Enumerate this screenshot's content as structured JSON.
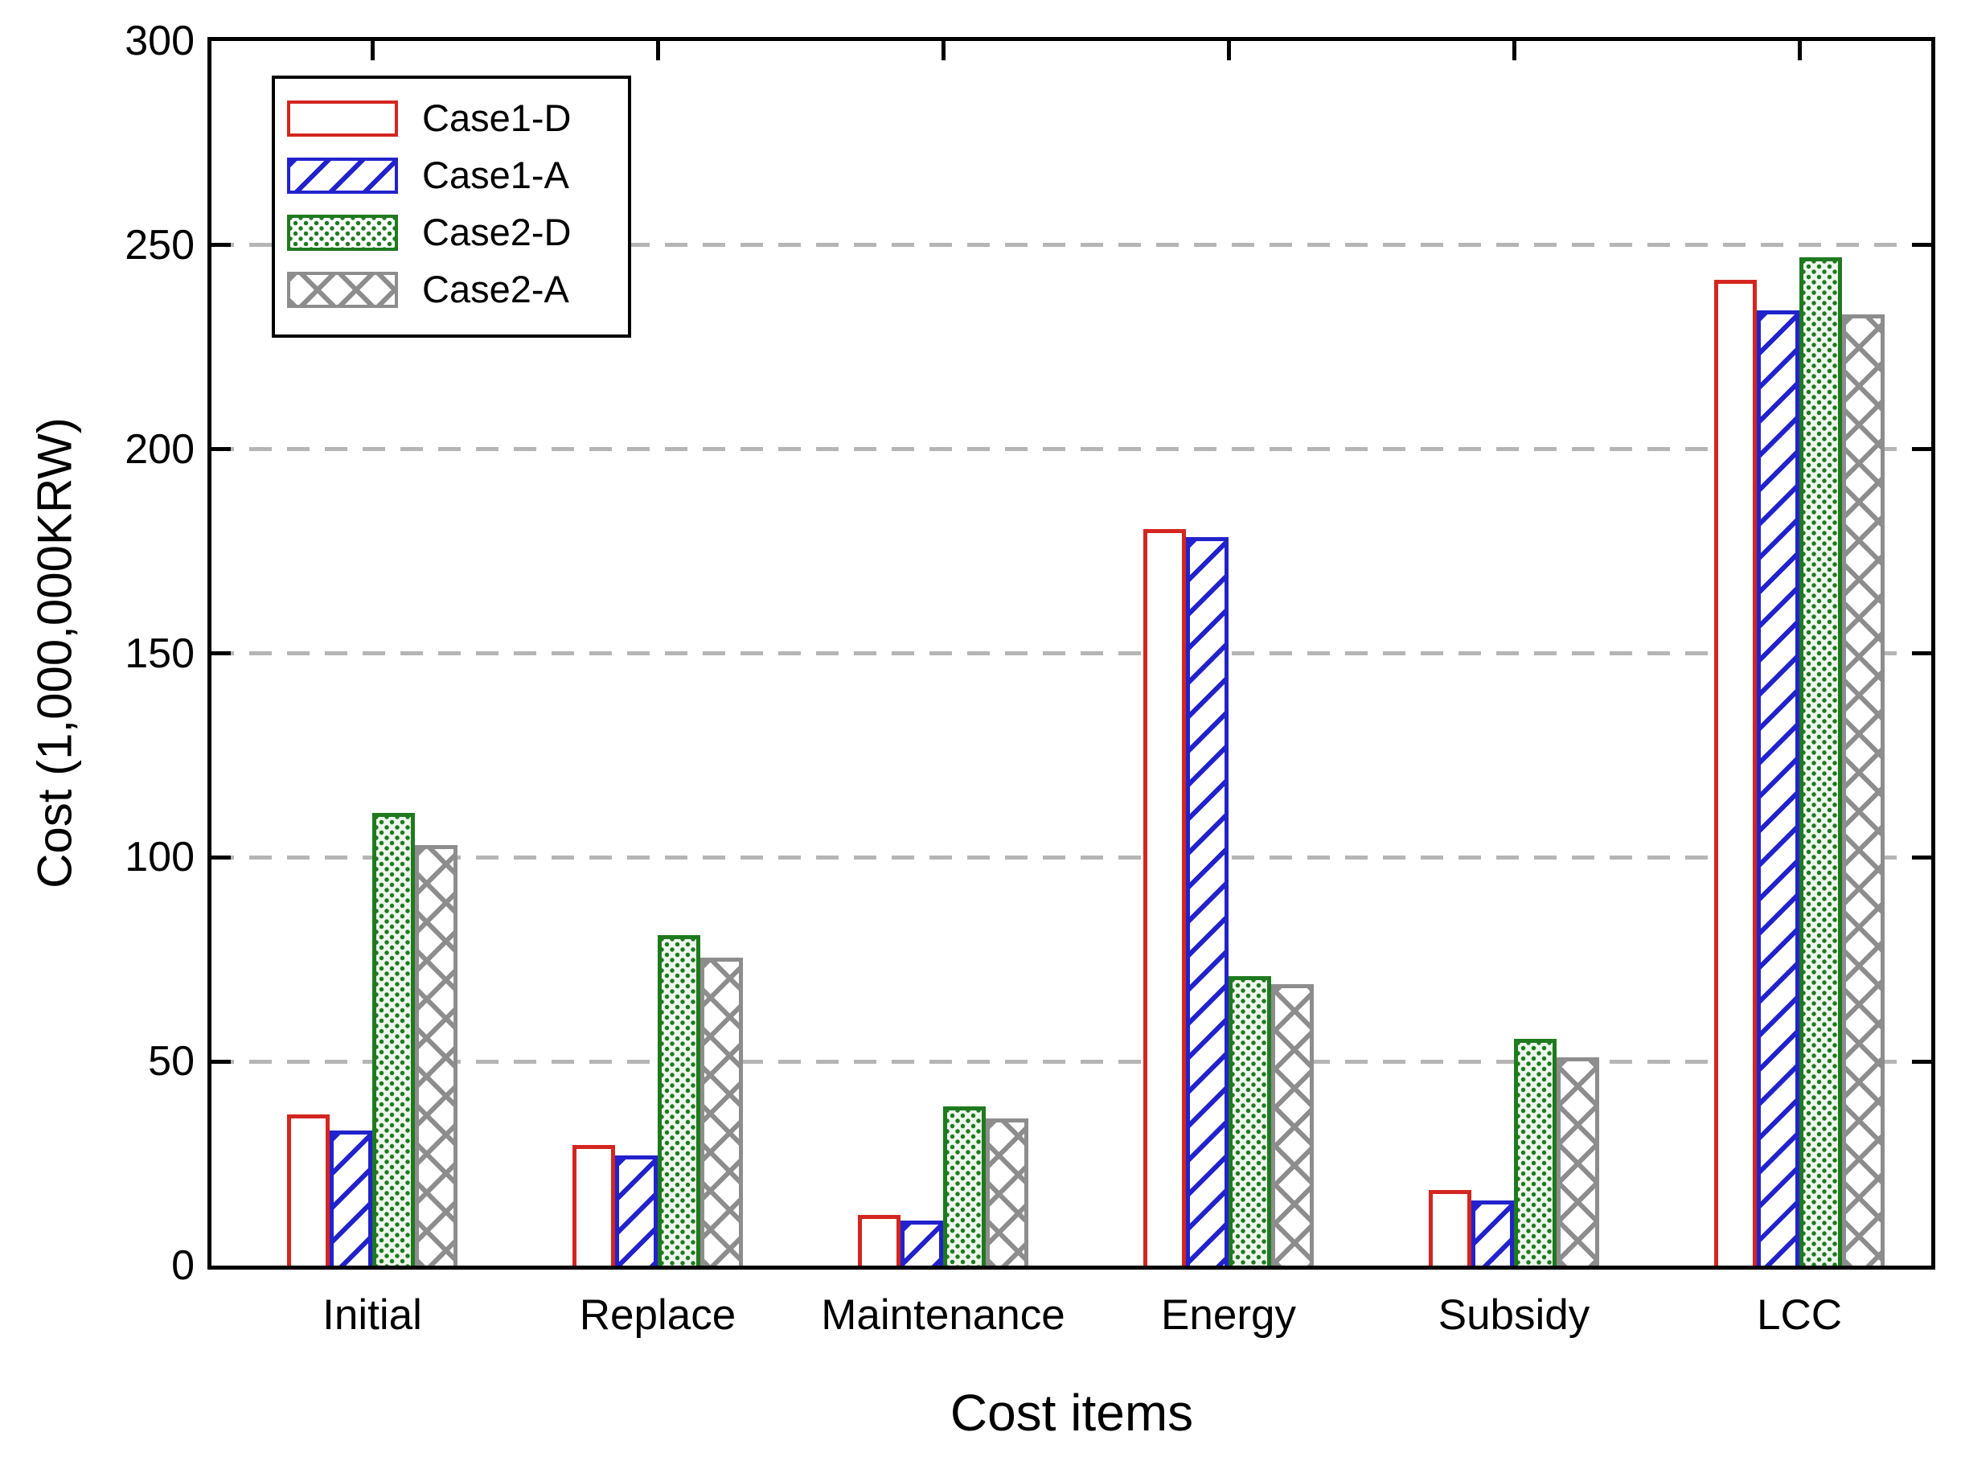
{
  "chart_data": {
    "type": "bar",
    "title": "",
    "xlabel": "Cost items",
    "ylabel": "Cost (1,000,000KRW)",
    "categories": [
      "Initial",
      "Replace",
      "Maintenance",
      "Energy",
      "Subsidy",
      "LCC"
    ],
    "series": [
      {
        "name": "Case1-D",
        "pattern": "outline",
        "color": "#d42620",
        "values": [
          37,
          29.5,
          12.5,
          180.5,
          18.5,
          241.5
        ]
      },
      {
        "name": "Case1-A",
        "pattern": "diagonal-hatch",
        "color": "#2222cc",
        "values": [
          33,
          27,
          11,
          178.5,
          16,
          234
        ]
      },
      {
        "name": "Case2-D",
        "pattern": "dots",
        "color": "#1f7a1f",
        "values": [
          111,
          81,
          39,
          71,
          55.5,
          247
        ]
      },
      {
        "name": "Case2-A",
        "pattern": "crosshatch",
        "color": "#8d8d8d",
        "values": [
          103,
          75.5,
          36,
          69,
          51,
          233
        ]
      }
    ],
    "ylim": [
      0,
      300
    ],
    "ytick_step": 50,
    "ytick_labels": [
      "0",
      "50",
      "100",
      "150",
      "200",
      "250",
      "300"
    ],
    "gridlines": [
      50,
      100,
      150,
      200,
      250
    ],
    "grid_style": "dashed-horizontal-gray",
    "gridline_color": "#b5b5b5",
    "legend_position": "top-left",
    "legend_entries": [
      "Case1-D",
      "Case1-A",
      "Case2-D",
      "Case2-A"
    ]
  }
}
